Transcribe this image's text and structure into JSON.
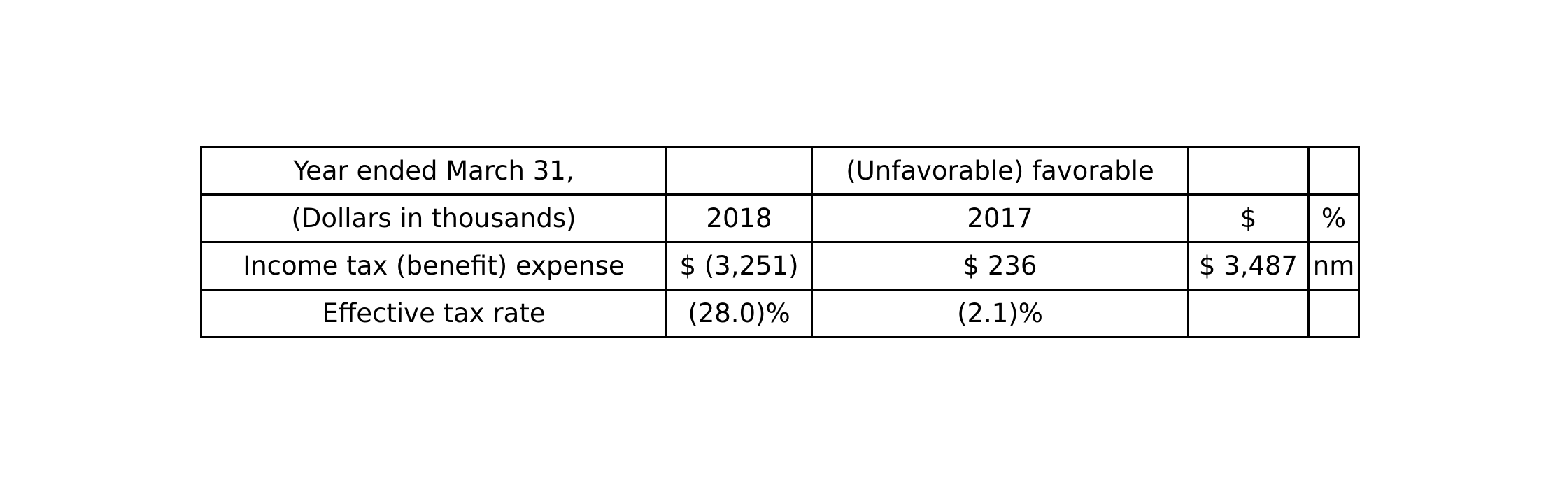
{
  "table": {
    "rows": [
      [
        "Year ended March 31,",
        "",
        "(Unfavorable) favorable",
        "",
        ""
      ],
      [
        "(Dollars in thousands)",
        "2018",
        "2017",
        "$",
        "%"
      ],
      [
        "Income tax (benefit) expense",
        "$ (3,251)",
        "$ 236",
        "$ 3,487",
        "nm"
      ],
      [
        "Effective tax rate",
        "(28.0)%",
        "(2.1)%",
        "",
        ""
      ]
    ]
  }
}
